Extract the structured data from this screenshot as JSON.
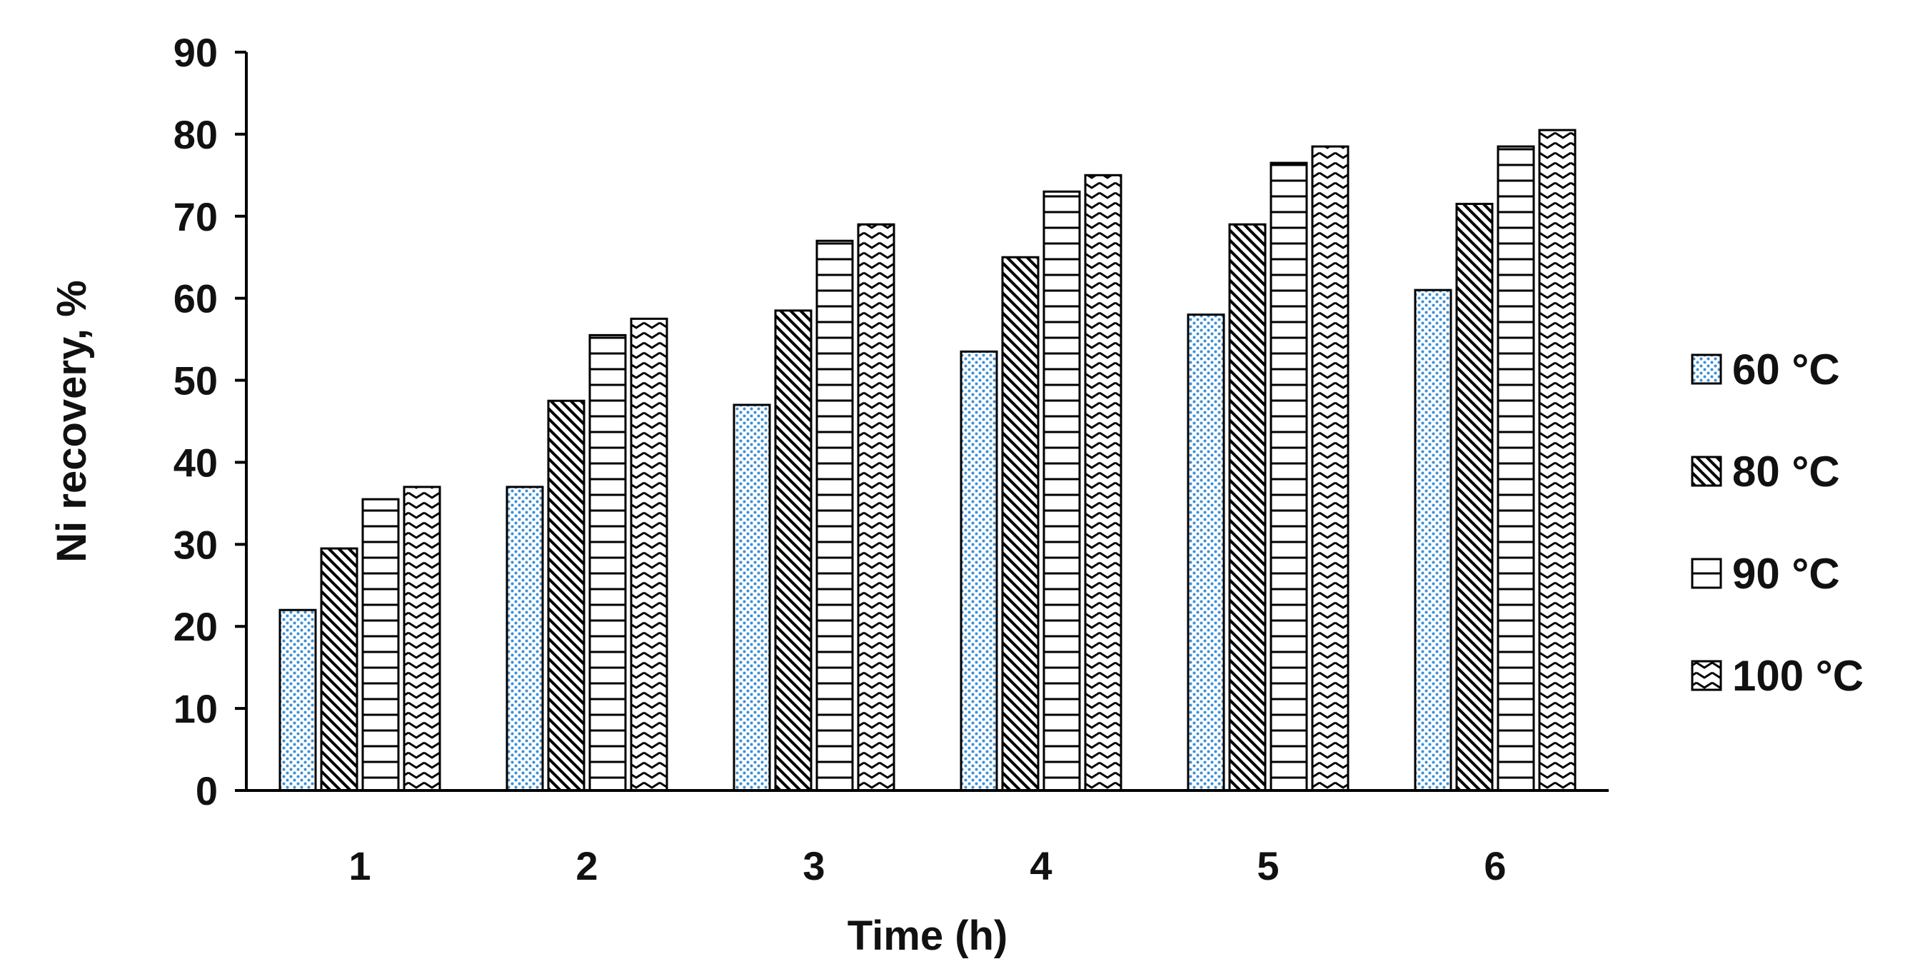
{
  "chart_data": {
    "type": "bar",
    "title": "",
    "xlabel": "Time (h)",
    "ylabel": "Ni recovery, %",
    "categories": [
      "1",
      "2",
      "3",
      "4",
      "5",
      "6"
    ],
    "ylim": [
      0,
      90
    ],
    "yticks": [
      0,
      10,
      20,
      30,
      40,
      50,
      60,
      70,
      80,
      90
    ],
    "grid": false,
    "legend_position": "right",
    "series": [
      {
        "name": "60 °C",
        "pattern": "dots",
        "color": "#3a8fd6",
        "values": [
          22,
          37,
          47,
          53.5,
          58,
          61
        ]
      },
      {
        "name": "80 °C",
        "pattern": "diagonal",
        "color": "#000000",
        "values": [
          29.5,
          47.5,
          58.5,
          65,
          69,
          71.5
        ]
      },
      {
        "name": "90 °C",
        "pattern": "horizontal",
        "color": "#000000",
        "values": [
          35.5,
          55.5,
          67,
          73,
          76.5,
          78.5
        ]
      },
      {
        "name": "100 °C",
        "pattern": "zigzag",
        "color": "#000000",
        "values": [
          37,
          57.5,
          69,
          75,
          78.5,
          80.5
        ]
      }
    ]
  }
}
